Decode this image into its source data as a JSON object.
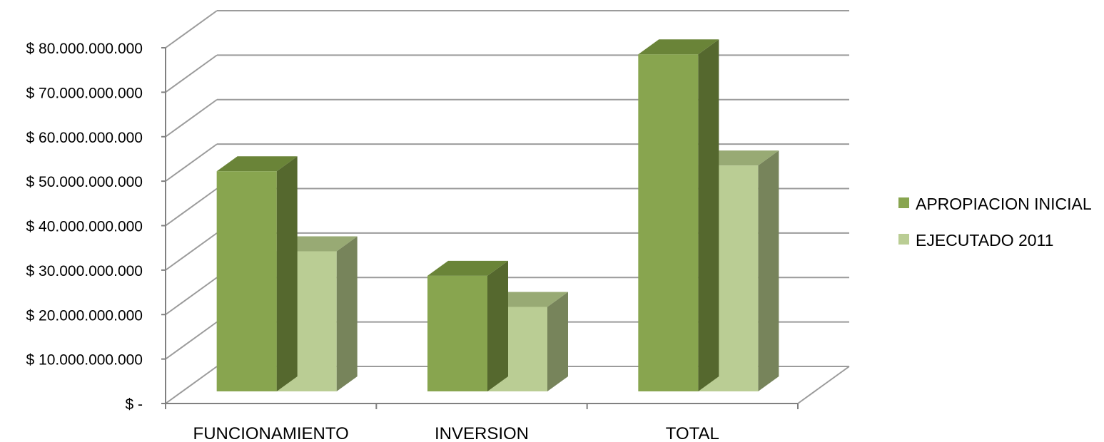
{
  "chart_data": {
    "type": "bar",
    "style": "3d-clustered-column",
    "categories": [
      "FUNCIONAMIENTO",
      "INVERSION",
      "TOTAL"
    ],
    "series": [
      {
        "name": "APROPIACION INICIAL",
        "values": [
          49500000000,
          26000000000,
          75800000000
        ]
      },
      {
        "name": "EJECUTADO 2011",
        "values": [
          31500000000,
          19000000000,
          50800000000
        ]
      }
    ],
    "ylim": [
      0,
      80000000000
    ],
    "y_ticks": [
      {
        "value": 0,
        "label": "$ -"
      },
      {
        "value": 10000000000,
        "label": "$ 10.000.000.000"
      },
      {
        "value": 20000000000,
        "label": "$ 20.000.000.000"
      },
      {
        "value": 30000000000,
        "label": "$ 30.000.000.000"
      },
      {
        "value": 40000000000,
        "label": "$ 40.000.000.000"
      },
      {
        "value": 50000000000,
        "label": "$ 50.000.000.000"
      },
      {
        "value": 60000000000,
        "label": "$ 60.000.000.000"
      },
      {
        "value": 70000000000,
        "label": "$ 70.000.000.000"
      },
      {
        "value": 80000000000,
        "label": "$ 80.000.000.000"
      }
    ],
    "grid": true,
    "legend_position": "right",
    "colors": {
      "series": [
        {
          "front": "#88a54f",
          "top": "#6a8438",
          "side": "#55682e"
        },
        {
          "front": "#bacd94",
          "top": "#98aa74",
          "side": "#77845b"
        }
      ],
      "grid": "#9b9b9b",
      "axis": "#808080"
    }
  }
}
